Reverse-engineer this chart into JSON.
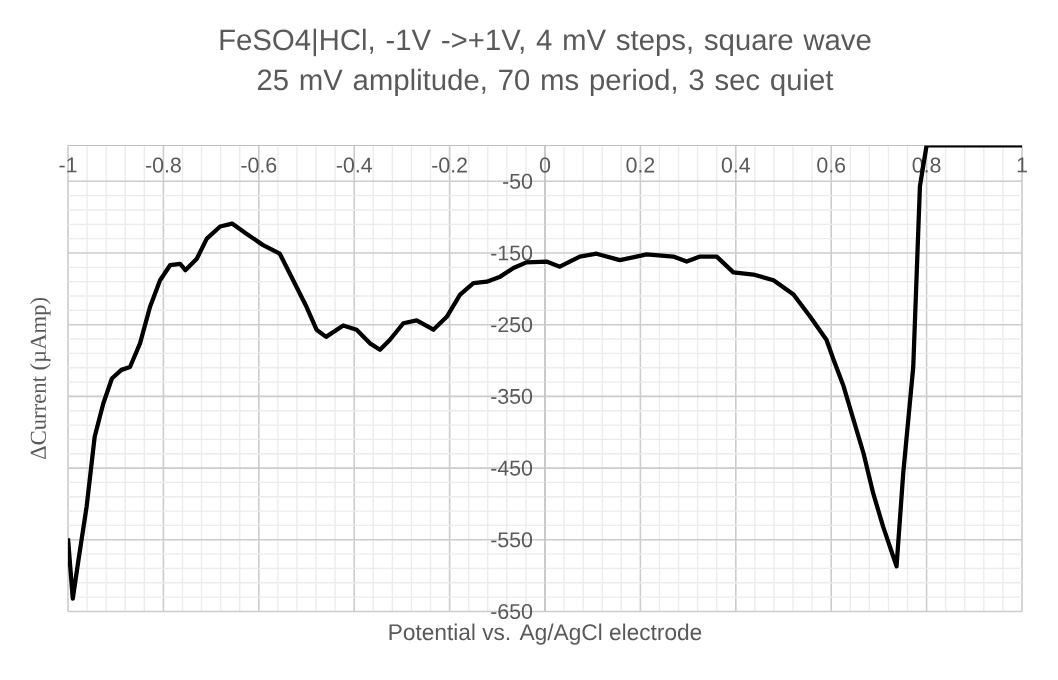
{
  "chart_data": {
    "type": "line",
    "title": "FeSO4|HCl, -1V ->+1V, 4 mV steps, square wave 25 mV amplitude, 70 ms period, 3 sec quiet",
    "xlabel": "Potential vs. Ag/AgCl electrode",
    "ylabel": "ΔCurrent (µAmp)",
    "x": [
      -1,
      -0.99,
      -0.978,
      -0.961,
      -0.944,
      -0.926,
      -0.908,
      -0.888,
      -0.87,
      -0.849,
      -0.828,
      -0.807,
      -0.786,
      -0.765,
      -0.754,
      -0.73,
      -0.709,
      -0.681,
      -0.656,
      -0.626,
      -0.591,
      -0.556,
      -0.528,
      -0.5,
      -0.479,
      -0.459,
      -0.423,
      -0.395,
      -0.367,
      -0.346,
      -0.325,
      -0.297,
      -0.269,
      -0.234,
      -0.206,
      -0.178,
      -0.15,
      -0.122,
      -0.094,
      -0.066,
      -0.039,
      0.003,
      0.031,
      0.073,
      0.108,
      0.157,
      0.213,
      0.269,
      0.297,
      0.325,
      0.36,
      0.395,
      0.437,
      0.479,
      0.521,
      0.556,
      0.59,
      0.605,
      0.626,
      0.647,
      0.668,
      0.688,
      0.709,
      0.737,
      0.751,
      0.772,
      0.786,
      0.8,
      1
    ],
    "series": [
      {
        "color": "#000000",
        "values": [
          -548,
          -632,
          -578,
          -504,
          -406,
          -360,
          -325,
          -313,
          -309,
          -276,
          -225,
          -188,
          -167,
          -165,
          -174,
          -158,
          -130,
          -113,
          -109,
          -123,
          -139,
          -151,
          -188,
          -225,
          -257,
          -267,
          -251,
          -257,
          -276,
          -285,
          -271,
          -248,
          -244,
          -257,
          -239,
          -208,
          -192,
          -190,
          -183,
          -171,
          -163,
          -162,
          -169,
          -155,
          -151,
          -160,
          -152,
          -155,
          -162,
          -155,
          -155,
          -177,
          -180,
          -188,
          -208,
          -239,
          -271,
          -299,
          -336,
          -383,
          -430,
          -485,
          -532,
          -587,
          -457,
          -309,
          -57,
          0,
          0
        ]
      }
    ],
    "xlim": [
      -1,
      1
    ],
    "ylim": [
      -650,
      0
    ],
    "xticks": [
      -1,
      -0.8,
      -0.6,
      -0.4,
      -0.2,
      0,
      0.2,
      0.4,
      0.6,
      0.8,
      1
    ],
    "yticks": [
      -650,
      -550,
      -450,
      -350,
      -250,
      -150,
      -50
    ],
    "grid": true,
    "marker": "none",
    "line_style": "solid"
  }
}
